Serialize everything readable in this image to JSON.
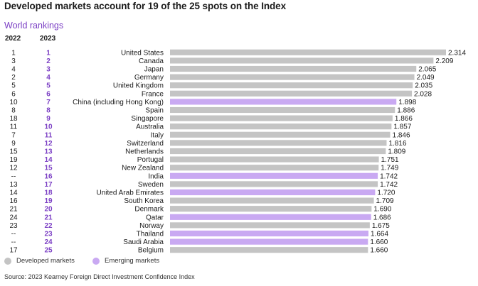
{
  "title": "Developed markets account for 19 of the 25 spots on the Index",
  "subtitle": "World rankings",
  "columns": {
    "prev": "2022",
    "curr": "2023"
  },
  "legend": {
    "developed": "Developed markets",
    "emerging": "Emerging markets"
  },
  "source": "Source: 2023 Kearney Foreign Direct Investment Confidence Index",
  "colors": {
    "developed": "#c4c4c4",
    "emerging": "#c9a9f2",
    "accent": "#7b3fc4",
    "text": "#1a1a1a"
  },
  "chart_data": {
    "type": "bar",
    "orientation": "horizontal",
    "xlim": [
      0,
      2.4
    ],
    "rows": [
      {
        "country": "United States",
        "value": 2.314,
        "value_label": "2.314",
        "rank_2022": "1",
        "rank_2023": "1",
        "group": "developed"
      },
      {
        "country": "Canada",
        "value": 2.209,
        "value_label": "2.209",
        "rank_2022": "3",
        "rank_2023": "2",
        "group": "developed"
      },
      {
        "country": "Japan",
        "value": 2.065,
        "value_label": "2.065",
        "rank_2022": "4",
        "rank_2023": "3",
        "group": "developed"
      },
      {
        "country": "Germany",
        "value": 2.049,
        "value_label": "2.049",
        "rank_2022": "2",
        "rank_2023": "4",
        "group": "developed"
      },
      {
        "country": "United Kingdom",
        "value": 2.035,
        "value_label": "2.035",
        "rank_2022": "5",
        "rank_2023": "5",
        "group": "developed"
      },
      {
        "country": "France",
        "value": 2.028,
        "value_label": "2.028",
        "rank_2022": "6",
        "rank_2023": "6",
        "group": "developed"
      },
      {
        "country": "China (including Hong Kong)",
        "value": 1.898,
        "value_label": "1.898",
        "rank_2022": "10",
        "rank_2023": "7",
        "group": "emerging"
      },
      {
        "country": "Spain",
        "value": 1.886,
        "value_label": "1.886",
        "rank_2022": "8",
        "rank_2023": "8",
        "group": "developed"
      },
      {
        "country": "Singapore",
        "value": 1.866,
        "value_label": "1.866",
        "rank_2022": "18",
        "rank_2023": "9",
        "group": "developed"
      },
      {
        "country": "Australia",
        "value": 1.857,
        "value_label": "1.857",
        "rank_2022": "11",
        "rank_2023": "10",
        "group": "developed"
      },
      {
        "country": "Italy",
        "value": 1.846,
        "value_label": "1.846",
        "rank_2022": "7",
        "rank_2023": "11",
        "group": "developed"
      },
      {
        "country": "Switzerland",
        "value": 1.816,
        "value_label": "1.816",
        "rank_2022": "9",
        "rank_2023": "12",
        "group": "developed"
      },
      {
        "country": "Netherlands",
        "value": 1.809,
        "value_label": "1.809",
        "rank_2022": "15",
        "rank_2023": "13",
        "group": "developed"
      },
      {
        "country": "Portugal",
        "value": 1.751,
        "value_label": "1.751",
        "rank_2022": "19",
        "rank_2023": "14",
        "group": "developed"
      },
      {
        "country": "New Zealand",
        "value": 1.749,
        "value_label": "1.749",
        "rank_2022": "12",
        "rank_2023": "15",
        "group": "developed"
      },
      {
        "country": "India",
        "value": 1.742,
        "value_label": "1.742",
        "rank_2022": "--",
        "rank_2023": "16",
        "group": "emerging"
      },
      {
        "country": "Sweden",
        "value": 1.742,
        "value_label": "1.742",
        "rank_2022": "13",
        "rank_2023": "17",
        "group": "developed"
      },
      {
        "country": "United Arab Emirates",
        "value": 1.72,
        "value_label": "1.720",
        "rank_2022": "14",
        "rank_2023": "18",
        "group": "emerging"
      },
      {
        "country": "South Korea",
        "value": 1.709,
        "value_label": "1.709",
        "rank_2022": "16",
        "rank_2023": "19",
        "group": "developed"
      },
      {
        "country": "Denmark",
        "value": 1.69,
        "value_label": "1.690",
        "rank_2022": "21",
        "rank_2023": "20",
        "group": "developed"
      },
      {
        "country": "Qatar",
        "value": 1.686,
        "value_label": "1.686",
        "rank_2022": "24",
        "rank_2023": "21",
        "group": "emerging"
      },
      {
        "country": "Norway",
        "value": 1.675,
        "value_label": "1.675",
        "rank_2022": "23",
        "rank_2023": "22",
        "group": "developed"
      },
      {
        "country": "Thailand",
        "value": 1.664,
        "value_label": "1.664",
        "rank_2022": "--",
        "rank_2023": "23",
        "group": "emerging"
      },
      {
        "country": "Saudi Arabia",
        "value": 1.66,
        "value_label": "1.660",
        "rank_2022": "--",
        "rank_2023": "24",
        "group": "emerging"
      },
      {
        "country": "Belgium",
        "value": 1.66,
        "value_label": "1.660",
        "rank_2022": "17",
        "rank_2023": "25",
        "group": "developed"
      }
    ]
  }
}
